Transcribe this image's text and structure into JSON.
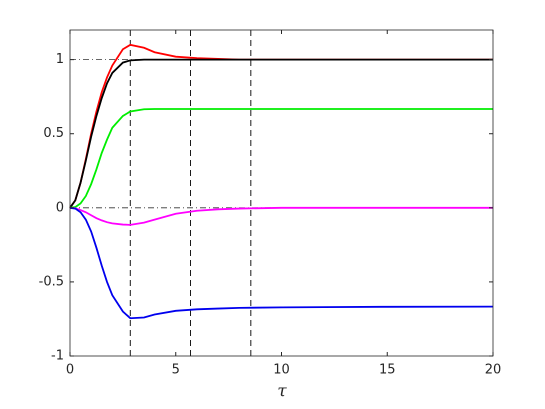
{
  "chart_data": {
    "type": "line",
    "xlabel": "τ",
    "x": [
      0,
      0.25,
      0.5,
      0.75,
      1,
      1.25,
      1.5,
      1.75,
      2,
      2.5,
      2.85,
      3.5,
      4,
      5,
      6,
      7,
      8,
      10,
      12,
      15,
      20
    ],
    "series": [
      {
        "color": "#ff0000",
        "values": [
          0,
          0.05,
          0.17,
          0.33,
          0.5,
          0.65,
          0.78,
          0.88,
          0.96,
          1.07,
          1.1,
          1.08,
          1.05,
          1.02,
          1.01,
          1.005,
          1.0,
          1,
          1,
          1,
          1
        ]
      },
      {
        "color": "#000000",
        "values": [
          0,
          0.05,
          0.17,
          0.32,
          0.48,
          0.62,
          0.74,
          0.84,
          0.91,
          0.98,
          0.995,
          1,
          1,
          1,
          1,
          1,
          1,
          1,
          1,
          1,
          1
        ]
      },
      {
        "color": "#00ee00",
        "values": [
          0,
          0.005,
          0.03,
          0.08,
          0.16,
          0.26,
          0.37,
          0.46,
          0.54,
          0.62,
          0.65,
          0.665,
          0.667,
          0.667,
          0.667,
          0.667,
          0.667,
          0.667,
          0.667,
          0.667,
          0.667
        ]
      },
      {
        "color": "#ff00ff",
        "values": [
          0,
          -0.003,
          -0.015,
          -0.03,
          -0.05,
          -0.07,
          -0.085,
          -0.097,
          -0.105,
          -0.113,
          -0.115,
          -0.1,
          -0.08,
          -0.04,
          -0.02,
          -0.01,
          -0.005,
          0,
          0,
          0,
          0
        ]
      },
      {
        "color": "#0000ee",
        "values": [
          0,
          -0.005,
          -0.03,
          -0.08,
          -0.16,
          -0.27,
          -0.39,
          -0.5,
          -0.59,
          -0.7,
          -0.745,
          -0.74,
          -0.72,
          -0.695,
          -0.685,
          -0.68,
          -0.675,
          -0.672,
          -0.67,
          -0.668,
          -0.667
        ]
      }
    ],
    "vlines": [
      2.85,
      5.7,
      8.55
    ],
    "hlines": [
      0,
      1
    ],
    "xlim": [
      0,
      20
    ],
    "xticks": [
      0,
      5,
      10,
      15,
      20
    ],
    "ylim": [
      -1,
      1.2
    ],
    "yticks": [
      -1,
      -0.5,
      0,
      0.5,
      1
    ],
    "grid": false
  }
}
